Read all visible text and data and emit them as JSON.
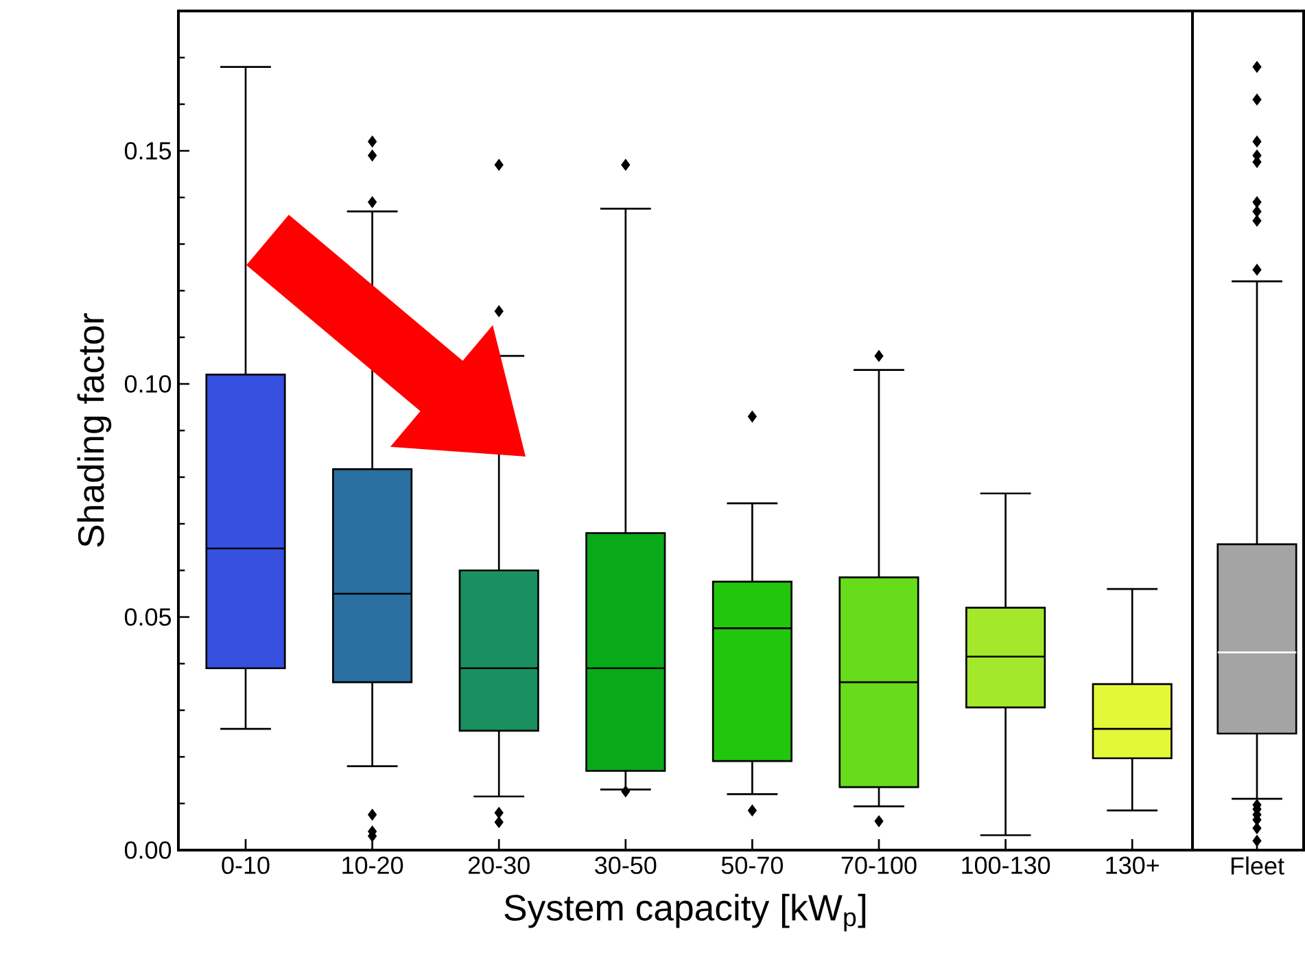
{
  "chart_data": [
    {
      "type": "box",
      "ylabel": "Shading factor",
      "xlabel": "System capacity [kW$_{p}$]",
      "categories": [
        "0-10",
        "10-20",
        "20-30",
        "30-50",
        "50-70",
        "70-100",
        "100-130",
        "130+"
      ],
      "colors": [
        "#3650e0",
        "#2a70a0",
        "#1a9060",
        "#08aa1a",
        "#22c60c",
        "#66dc1a",
        "#a4e82c",
        "#e4f83a"
      ],
      "ylim": [
        0,
        0.18
      ],
      "yticks": [
        {
          "value": 0,
          "label": "0.00"
        },
        {
          "value": 0.05,
          "label": "0.05"
        },
        {
          "value": 0.1,
          "label": "0.10"
        },
        {
          "value": 0.15,
          "label": "0.15"
        },
        {
          "value": 0.01,
          "label": null
        },
        {
          "value": 0.02,
          "label": null
        },
        {
          "value": 0.03,
          "label": null
        },
        {
          "value": 0.04,
          "label": null
        },
        {
          "value": 0.06,
          "label": null
        },
        {
          "value": 0.07,
          "label": null
        },
        {
          "value": 0.08,
          "label": null
        },
        {
          "value": 0.09,
          "label": null
        },
        {
          "value": 0.11,
          "label": null
        },
        {
          "value": 0.12,
          "label": null
        },
        {
          "value": 0.13,
          "label": null
        },
        {
          "value": 0.14,
          "label": null
        },
        {
          "value": 0.16,
          "label": null
        },
        {
          "value": 0.17,
          "label": null
        }
      ],
      "marker": "diamond",
      "boxes": [
        {
          "low": 0.026,
          "q1": 0.039,
          "median": 0.0647,
          "q3": 0.102,
          "high": 0.168
        },
        {
          "low": 0.018,
          "q1": 0.036,
          "median": 0.055,
          "q3": 0.0817,
          "high": 0.137,
          "outliers": [
            0.152,
            0.149,
            0.139,
            0.0076,
            0.004,
            0.003
          ]
        },
        {
          "low": 0.0115,
          "q1": 0.0256,
          "median": 0.039,
          "q3": 0.06,
          "high": 0.106,
          "outliers": [
            0.147,
            0.1156,
            0.008,
            0.006
          ]
        },
        {
          "low": 0.013,
          "q1": 0.017,
          "median": 0.039,
          "q3": 0.068,
          "high": 0.1376,
          "outliers": [
            0.147,
            0.0126
          ]
        },
        {
          "low": 0.012,
          "q1": 0.0191,
          "median": 0.0476,
          "q3": 0.0576,
          "high": 0.0744,
          "outliers": [
            0.093,
            0.0085
          ]
        },
        {
          "low": 0.0094,
          "q1": 0.0135,
          "median": 0.036,
          "q3": 0.0585,
          "high": 0.103,
          "outliers": [
            0.106,
            0.0062
          ]
        },
        {
          "low": 0.0032,
          "q1": 0.0306,
          "median": 0.0415,
          "q3": 0.052,
          "high": 0.0765
        },
        {
          "low": 0.0085,
          "q1": 0.0197,
          "median": 0.026,
          "q3": 0.0356,
          "high": 0.056
        }
      ]
    },
    {
      "type": "box",
      "categories": [
        "Fleet"
      ],
      "colors": [
        "#a4a4a4"
      ],
      "ylim": [
        0,
        0.18
      ],
      "tick_labels": "x",
      "marker": "diamond",
      "boxes": [
        {
          "low": 0.011,
          "q1": 0.025,
          "median": 0.0424,
          "q3": 0.0656,
          "high": 0.122,
          "outliers": [
            0.168,
            0.161,
            0.152,
            0.149,
            0.1476,
            0.139,
            0.137,
            0.135,
            0.1245,
            0.0097,
            0.0088,
            0.0076,
            0.0065,
            0.0047,
            0.002
          ]
        }
      ]
    }
  ]
}
